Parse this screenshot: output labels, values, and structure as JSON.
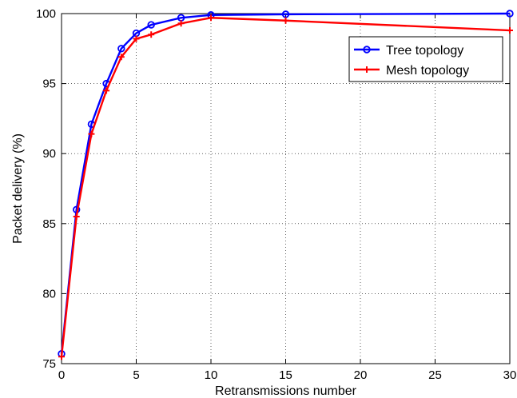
{
  "chart_data": {
    "type": "line",
    "xlabel": "Retransmissions number",
    "ylabel": "Packet delivery (%)",
    "xlim": [
      0,
      30
    ],
    "ylim": [
      75,
      100
    ],
    "xticks": [
      0,
      5,
      10,
      15,
      20,
      25,
      30
    ],
    "yticks": [
      75,
      80,
      85,
      90,
      95,
      100
    ],
    "grid": true,
    "legend_position": "top-right",
    "series": [
      {
        "name": "Tree topology",
        "color": "#0000ff",
        "marker": "circle",
        "x": [
          0,
          1,
          2,
          3,
          4,
          5,
          6,
          8,
          10,
          15,
          30
        ],
        "y": [
          75.7,
          86.0,
          92.1,
          95.0,
          97.5,
          98.6,
          99.2,
          99.7,
          99.9,
          99.95,
          100.0
        ]
      },
      {
        "name": "Mesh topology",
        "color": "#ff0000",
        "marker": "plus",
        "x": [
          0,
          1,
          2,
          3,
          4,
          5,
          6,
          8,
          10,
          15,
          30
        ],
        "y": [
          75.5,
          85.5,
          91.4,
          94.5,
          96.9,
          98.2,
          98.5,
          99.3,
          99.7,
          99.5,
          98.8
        ]
      }
    ]
  }
}
